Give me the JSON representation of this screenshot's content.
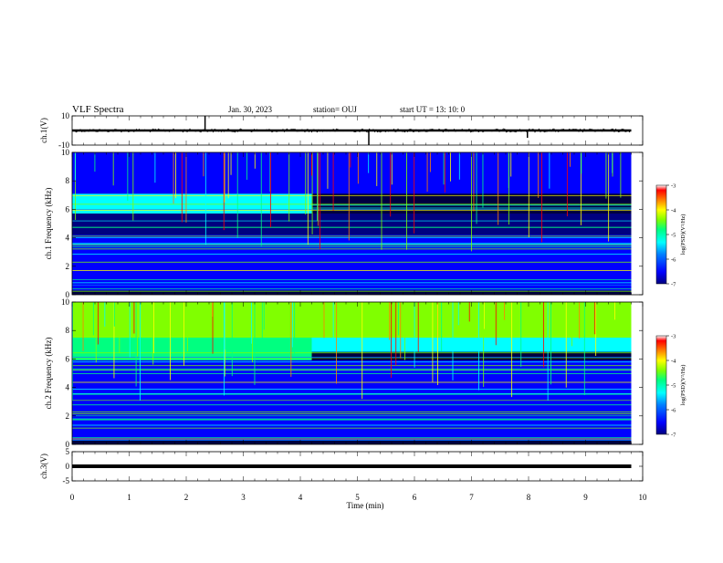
{
  "header": {
    "title": "VLF Spectra",
    "date": "Jan. 30, 2023",
    "station": "station= OUJ",
    "start_ut": "start  UT =   13: 10: 0"
  },
  "chart_data": [
    {
      "type": "line",
      "panel": "ch1-waveform",
      "ylabel": "ch.1(V)",
      "ylim": [
        -10,
        10
      ],
      "yticks": [
        "10",
        "-10"
      ],
      "xlim": [
        0,
        10
      ],
      "series": [
        {
          "x": [
            0,
            1,
            2,
            3,
            4,
            5,
            6,
            7,
            8,
            9,
            9.8
          ],
          "values": [
            0,
            0,
            0,
            0,
            0,
            0,
            0,
            0,
            0,
            0,
            0
          ]
        }
      ],
      "spikes": [
        {
          "x": 2.33,
          "value": 10
        },
        {
          "x": 5.2,
          "value": -10
        },
        {
          "x": 7.98,
          "value": -5
        }
      ]
    },
    {
      "type": "heatmap",
      "panel": "ch1-spectrogram",
      "ylabel": "ch.1 Frequency (kHz)",
      "ylim": [
        0,
        10
      ],
      "yticks": [
        "0",
        "2",
        "4",
        "6",
        "8",
        "10"
      ],
      "xlim": [
        0,
        10
      ],
      "data_end_min": 9.8,
      "colorbar": {
        "label": "log(PSD)(V²/Hz)",
        "min": -7,
        "max": -3,
        "ticks": [
          "-3",
          "-4",
          "-5",
          "-6",
          "-7"
        ]
      },
      "bands": [
        {
          "fmin": 5.7,
          "fmax": 7.1,
          "t0": 0,
          "t1": 4.2,
          "level": -5.4
        },
        {
          "fmin": 7.1,
          "fmax": 10,
          "t0": 0,
          "t1": 9.8,
          "level": -6.2
        },
        {
          "fmin": 4.2,
          "fmax": 5.7,
          "t0": 0,
          "t1": 9.8,
          "level": -6.6
        },
        {
          "fmin": 0.3,
          "fmax": 4.2,
          "t0": 0,
          "t1": 9.8,
          "level": -6.3
        }
      ]
    },
    {
      "type": "heatmap",
      "panel": "ch2-spectrogram",
      "ylabel": "ch.2 Frequency (kHz)",
      "ylim": [
        0,
        10
      ],
      "yticks": [
        "0",
        "2",
        "4",
        "6",
        "8",
        "10"
      ],
      "xlim": [
        0,
        10
      ],
      "data_end_min": 9.8,
      "colorbar": {
        "label": "log(PSD)(V²/Hz)",
        "min": -7,
        "max": -3,
        "ticks": [
          "-3",
          "-4",
          "-5",
          "-6",
          "-7"
        ]
      },
      "bands": [
        {
          "fmin": 7.5,
          "fmax": 10,
          "t0": 0,
          "t1": 9.8,
          "level": -4.6
        },
        {
          "fmin": 5.9,
          "fmax": 7.5,
          "t0": 0,
          "t1": 4.2,
          "level": -5.2
        },
        {
          "fmin": 6.5,
          "fmax": 7.5,
          "t0": 4.2,
          "t1": 9.8,
          "level": -5.5
        },
        {
          "fmin": 0.3,
          "fmax": 5.9,
          "t0": 0,
          "t1": 9.8,
          "level": -6.4
        }
      ]
    },
    {
      "type": "line",
      "panel": "ch3-waveform",
      "ylabel": "ch.3(V)",
      "ylim": [
        -5,
        5
      ],
      "yticks": [
        "5",
        "0",
        "-5"
      ],
      "xlim": [
        0,
        10
      ],
      "series": [
        {
          "x": [
            0,
            9.8
          ],
          "values": [
            0,
            0
          ]
        }
      ]
    }
  ],
  "x_axis": {
    "label": "Time (min)",
    "ticks": [
      "0",
      "1",
      "2",
      "3",
      "4",
      "5",
      "6",
      "7",
      "8",
      "9",
      "10"
    ]
  },
  "colors": {
    "colormap": [
      "#000080",
      "#0000ff",
      "#0080ff",
      "#00ffff",
      "#00ff80",
      "#80ff00",
      "#ffff00",
      "#ff8000",
      "#ff0000",
      "#ffffff"
    ]
  }
}
